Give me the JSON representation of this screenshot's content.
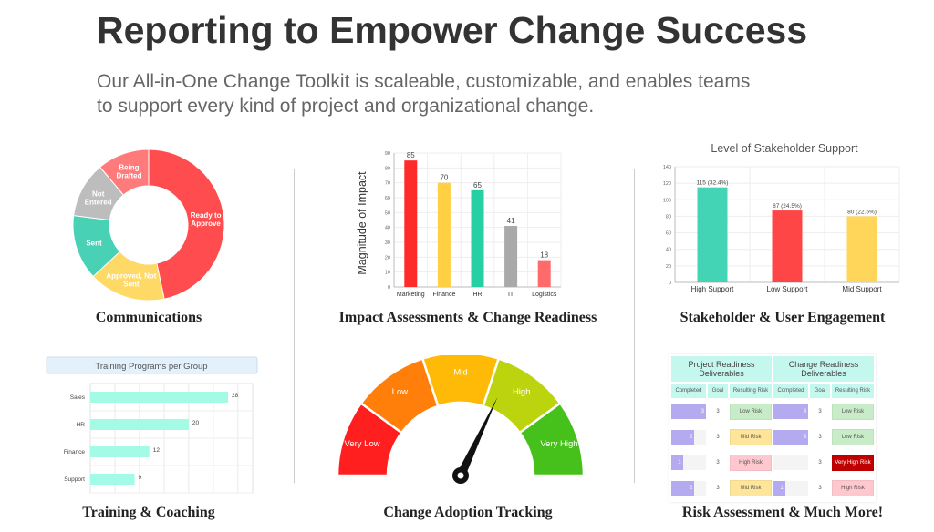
{
  "header": {
    "title": "Reporting to Empower Change Success",
    "subtitle_line1": "Our All-in-One Change Toolkit is scaleable, customizable, and enables teams",
    "subtitle_line2": "to support every kind of project and organizational change."
  },
  "captions": {
    "communications": "Communications",
    "impact": "Impact Assessments & Change Readiness",
    "stakeholder": "Stakeholder & User Engagement",
    "training": "Training & Coaching",
    "adoption": "Change Adoption Tracking",
    "risk": "Risk Assessment & Much More!"
  },
  "chart_data": [
    {
      "type": "pie",
      "donut": true,
      "categories": [
        "Ready to Approve",
        "Approved, Not Sent",
        "Sent",
        "Not Entered",
        "Being Drafted"
      ],
      "values": [
        46.7,
        16.4,
        13.9,
        11.9,
        11.1
      ],
      "colors": [
        "#ff4d4f",
        "#ffd966",
        "#48d1b5",
        "#bdbdbd",
        "#ff7b7b"
      ]
    },
    {
      "type": "bar",
      "categories": [
        "Marketing",
        "Finance",
        "HR",
        "IT",
        "Logistics"
      ],
      "values": [
        85,
        70,
        65,
        41,
        18
      ],
      "data_labels": [
        "85",
        "70",
        "65",
        "41",
        "18"
      ],
      "colors": [
        "#ff2b2b",
        "#ffcf44",
        "#27cfa4",
        "#a9a9a9",
        "#ff6b6b"
      ],
      "ylabel": "Magnitude of Impact",
      "ylim": [
        0,
        90
      ],
      "yticks": [
        0,
        10,
        20,
        30,
        40,
        50,
        60,
        70,
        80,
        90
      ],
      "grid": true
    },
    {
      "type": "bar",
      "title": "Level of Stakeholder Support",
      "categories": [
        "High Support",
        "Low Support",
        "Mid Support"
      ],
      "values": [
        115,
        87,
        80
      ],
      "data_labels": [
        "115 (32.4%)",
        "87 (24.5%)",
        "80 (22.5%)"
      ],
      "colors": [
        "#43d4b6",
        "#ff4646",
        "#ffd65a"
      ],
      "ylim": [
        0,
        140
      ],
      "yticks": [
        0,
        20,
        40,
        60,
        80,
        100,
        120,
        140
      ],
      "grid": true
    },
    {
      "type": "bar",
      "orientation": "horizontal",
      "title": "Training Programs per Group",
      "categories": [
        "Sales",
        "HR",
        "Finance",
        "Support"
      ],
      "values": [
        28,
        20,
        12,
        9
      ],
      "data_labels": [
        "28",
        "20",
        "12",
        "9"
      ],
      "colors": [
        "#a3fbe6"
      ],
      "grid": true
    }
  ],
  "gauge": {
    "segments": [
      {
        "label": "Very Low",
        "color": "#ff1f1f"
      },
      {
        "label": "Low",
        "color": "#ff7f0a"
      },
      {
        "label": "Mid",
        "color": "#ffba08"
      },
      {
        "label": "High",
        "color": "#bcd40e"
      },
      {
        "label": "Very High",
        "color": "#46c01a"
      }
    ],
    "value_fraction": 0.64
  },
  "risk_table": {
    "groups": [
      {
        "title_line1": "Project Readiness",
        "title_line2": "Deliverables"
      },
      {
        "title_line1": "Change Readiness",
        "title_line2": "Deliverables"
      }
    ],
    "columns": [
      "Completed",
      "Goal",
      "Resulting Risk"
    ],
    "rows": [
      [
        {
          "completed": 3,
          "goal": "3",
          "risk": "Low Risk",
          "color": "#c8ecc8"
        },
        {
          "completed": 3,
          "goal": "3",
          "risk": "Low Risk",
          "color": "#c8ecc8"
        }
      ],
      [
        {
          "completed": 2,
          "goal": "3",
          "risk": "Mid Risk",
          "color": "#ffe59a"
        },
        {
          "completed": 3,
          "goal": "3",
          "risk": "Low Risk",
          "color": "#c8ecc8"
        }
      ],
      [
        {
          "completed": 1,
          "goal": "3",
          "risk": "High Risk",
          "color": "#ffc7ce"
        },
        {
          "completed": 0,
          "goal": "3",
          "risk": "Very High Risk",
          "color": "#c00000"
        }
      ],
      [
        {
          "completed": 2,
          "goal": "3",
          "risk": "Mid Risk",
          "color": "#ffe59a"
        },
        {
          "completed": 1,
          "goal": "3",
          "risk": "High Risk",
          "color": "#ffc7ce"
        }
      ]
    ]
  }
}
